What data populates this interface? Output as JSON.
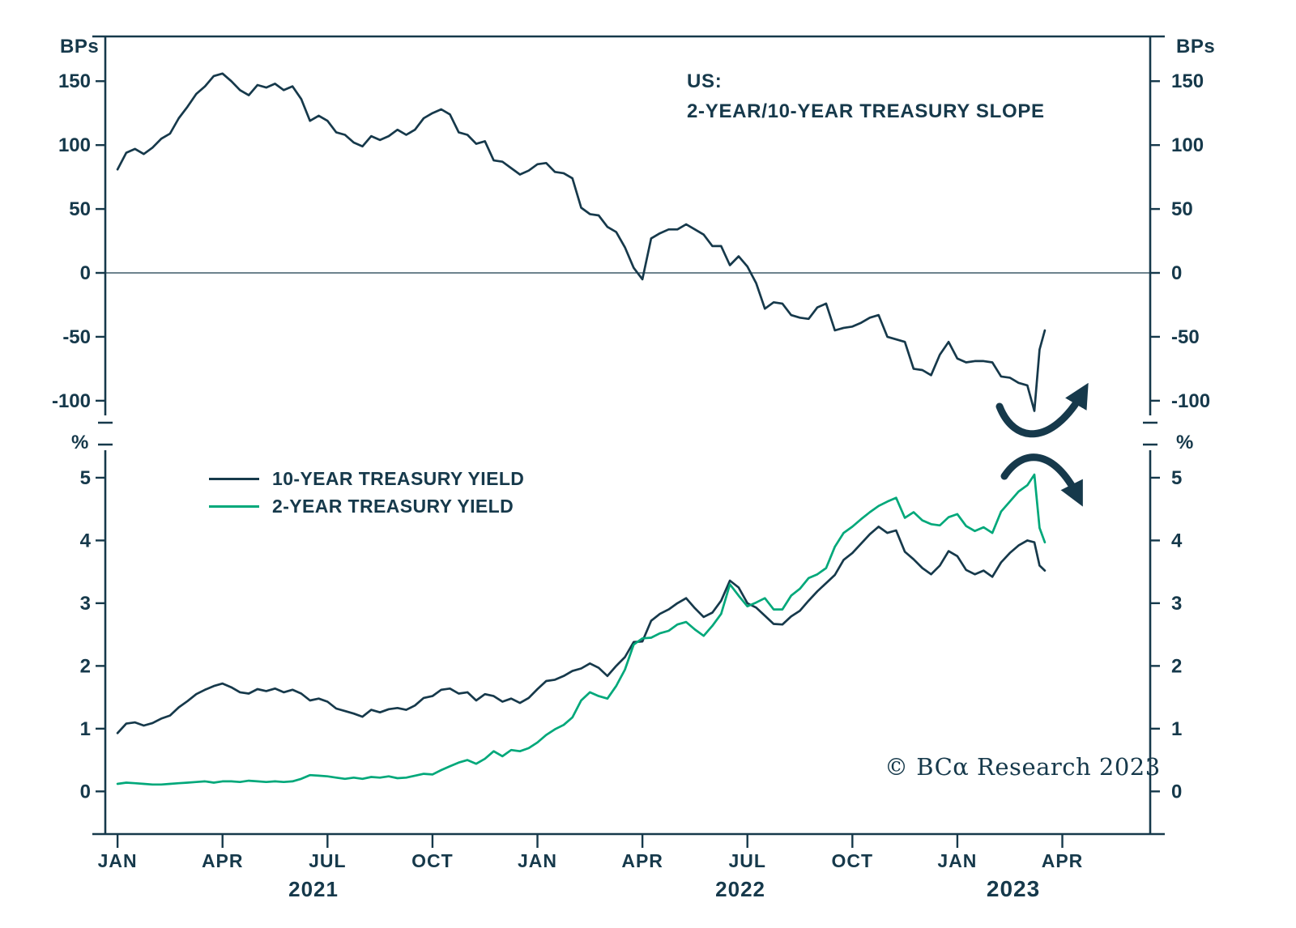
{
  "title": {
    "line1": "US:",
    "line2": "2-YEAR/10-YEAR TREASURY SLOPE"
  },
  "axis_units": {
    "top_left": "BPs",
    "top_right": "BPs",
    "bottom_left": "%",
    "bottom_right": "%"
  },
  "legend": [
    {
      "label": "10-YEAR TREASURY YIELD",
      "color": "#16394B"
    },
    {
      "label": "2-YEAR TREASURY YIELD",
      "color": "#00A87A"
    }
  ],
  "copyright": "© BCα Research 2023",
  "colors": {
    "navy": "#16394B",
    "green": "#00A87A",
    "background": "#FFFFFF"
  },
  "x_axis": {
    "month_labels": [
      "JAN",
      "APR",
      "JUL",
      "OCT",
      "JAN",
      "APR",
      "JUL",
      "OCT",
      "JAN",
      "APR"
    ],
    "month_positions": [
      0,
      3,
      6,
      9,
      12,
      15,
      18,
      21,
      24,
      27
    ],
    "year_labels": [
      {
        "label": "2021",
        "pos": 5.6,
        "emphasis": false
      },
      {
        "label": "2022",
        "pos": 17.8,
        "emphasis": false
      },
      {
        "label": "2023",
        "pos": 25.6,
        "emphasis": true
      }
    ]
  },
  "chart_data": [
    {
      "type": "line",
      "panel": "top",
      "title": "US: 2-YEAR/10-YEAR TREASURY SLOPE",
      "ylabel": "BPs",
      "ylim": [
        -121,
        185
      ],
      "yticks": [
        150,
        100,
        50,
        0,
        -50,
        -100
      ],
      "zero_line": true,
      "x_unit": "months since Jan 2021",
      "x": [
        0,
        0.25,
        0.5,
        0.75,
        1,
        1.25,
        1.5,
        1.75,
        2,
        2.25,
        2.5,
        2.75,
        3,
        3.25,
        3.5,
        3.75,
        4,
        4.25,
        4.5,
        4.75,
        5,
        5.25,
        5.5,
        5.75,
        6,
        6.25,
        6.5,
        6.75,
        7,
        7.25,
        7.5,
        7.75,
        8,
        8.25,
        8.5,
        8.75,
        9,
        9.25,
        9.5,
        9.75,
        10,
        10.25,
        10.5,
        10.75,
        11,
        11.25,
        11.5,
        11.75,
        12,
        12.25,
        12.5,
        12.75,
        13,
        13.25,
        13.5,
        13.75,
        14,
        14.25,
        14.5,
        14.75,
        15,
        15.25,
        15.5,
        15.75,
        16,
        16.25,
        16.5,
        16.75,
        17,
        17.25,
        17.5,
        17.75,
        18,
        18.25,
        18.5,
        18.75,
        19,
        19.25,
        19.5,
        19.75,
        20,
        20.25,
        20.5,
        20.75,
        21,
        21.25,
        21.5,
        21.75,
        22,
        22.25,
        22.5,
        22.75,
        23,
        23.25,
        23.5,
        23.75,
        24,
        24.25,
        24.5,
        24.75,
        25,
        25.25,
        25.5,
        25.75,
        26,
        26.2,
        26.35,
        26.5
      ],
      "series": [
        {
          "name": "2-year/10-year Treasury slope (bps)",
          "color": "#16394B",
          "values": [
            81,
            94,
            97,
            93,
            98,
            105,
            109,
            121,
            130,
            140,
            146,
            154,
            156,
            150,
            143,
            139,
            147,
            145,
            148,
            143,
            146,
            136,
            119,
            123,
            119,
            110,
            108,
            102,
            99,
            107,
            104,
            107,
            112,
            108,
            112,
            121,
            125,
            128,
            124,
            110,
            108,
            101,
            103,
            88,
            87,
            82,
            77,
            80,
            85,
            86,
            79,
            78,
            74,
            51,
            46,
            45,
            36,
            32,
            20,
            4,
            -5,
            27,
            31,
            34,
            34,
            38,
            34,
            30,
            21,
            21,
            6,
            13,
            5,
            -8,
            -28,
            -23,
            -24,
            -33,
            -35,
            -36,
            -27,
            -24,
            -45,
            -43,
            -42,
            -39,
            -35,
            -33,
            -50,
            -52,
            -54,
            -75,
            -76,
            -80,
            -64,
            -54,
            -67,
            -70,
            -69,
            -69,
            -70,
            -81,
            -82,
            -86,
            -88,
            -108,
            -60,
            -45
          ]
        }
      ],
      "annotation": "curved arrow pointing up-right at the sharp re-steepening spike, March 2023"
    },
    {
      "type": "line",
      "panel": "bottom",
      "ylabel": "%",
      "ylim": [
        -0.68,
        5.58
      ],
      "yticks": [
        5,
        4,
        3,
        2,
        1,
        0
      ],
      "zero_line": false,
      "x_unit": "months since Jan 2021",
      "x": [
        0,
        0.25,
        0.5,
        0.75,
        1,
        1.25,
        1.5,
        1.75,
        2,
        2.25,
        2.5,
        2.75,
        3,
        3.25,
        3.5,
        3.75,
        4,
        4.25,
        4.5,
        4.75,
        5,
        5.25,
        5.5,
        5.75,
        6,
        6.25,
        6.5,
        6.75,
        7,
        7.25,
        7.5,
        7.75,
        8,
        8.25,
        8.5,
        8.75,
        9,
        9.25,
        9.5,
        9.75,
        10,
        10.25,
        10.5,
        10.75,
        11,
        11.25,
        11.5,
        11.75,
        12,
        12.25,
        12.5,
        12.75,
        13,
        13.25,
        13.5,
        13.75,
        14,
        14.25,
        14.5,
        14.75,
        15,
        15.25,
        15.5,
        15.75,
        16,
        16.25,
        16.5,
        16.75,
        17,
        17.25,
        17.5,
        17.75,
        18,
        18.25,
        18.5,
        18.75,
        19,
        19.25,
        19.5,
        19.75,
        20,
        20.25,
        20.5,
        20.75,
        21,
        21.25,
        21.5,
        21.75,
        22,
        22.25,
        22.5,
        22.75,
        23,
        23.25,
        23.5,
        23.75,
        24,
        24.25,
        24.5,
        24.75,
        25,
        25.25,
        25.5,
        25.75,
        26,
        26.2,
        26.35,
        26.5
      ],
      "series": [
        {
          "name": "10-YEAR TREASURY YIELD",
          "color": "#16394B",
          "values": [
            0.93,
            1.08,
            1.1,
            1.05,
            1.09,
            1.16,
            1.21,
            1.34,
            1.44,
            1.55,
            1.62,
            1.68,
            1.72,
            1.66,
            1.58,
            1.56,
            1.63,
            1.6,
            1.64,
            1.58,
            1.62,
            1.56,
            1.45,
            1.48,
            1.43,
            1.32,
            1.28,
            1.24,
            1.19,
            1.3,
            1.26,
            1.31,
            1.33,
            1.3,
            1.37,
            1.49,
            1.52,
            1.62,
            1.64,
            1.56,
            1.58,
            1.45,
            1.55,
            1.52,
            1.43,
            1.48,
            1.41,
            1.49,
            1.63,
            1.76,
            1.78,
            1.84,
            1.92,
            1.96,
            2.04,
            1.97,
            1.84,
            2.0,
            2.14,
            2.38,
            2.39,
            2.72,
            2.83,
            2.9,
            3.0,
            3.08,
            2.92,
            2.78,
            2.85,
            3.04,
            3.36,
            3.25,
            3.0,
            2.93,
            2.8,
            2.67,
            2.66,
            2.79,
            2.88,
            3.04,
            3.19,
            3.32,
            3.45,
            3.69,
            3.8,
            3.95,
            4.1,
            4.22,
            4.12,
            4.16,
            3.82,
            3.7,
            3.56,
            3.46,
            3.6,
            3.83,
            3.75,
            3.53,
            3.46,
            3.52,
            3.42,
            3.65,
            3.8,
            3.92,
            4.0,
            3.97,
            3.6,
            3.52
          ]
        },
        {
          "name": "2-YEAR TREASURY YIELD",
          "color": "#00A87A",
          "values": [
            0.12,
            0.14,
            0.13,
            0.12,
            0.11,
            0.11,
            0.12,
            0.13,
            0.14,
            0.15,
            0.16,
            0.14,
            0.16,
            0.16,
            0.15,
            0.17,
            0.16,
            0.15,
            0.16,
            0.15,
            0.16,
            0.2,
            0.26,
            0.25,
            0.24,
            0.22,
            0.2,
            0.22,
            0.2,
            0.23,
            0.22,
            0.24,
            0.21,
            0.22,
            0.25,
            0.28,
            0.27,
            0.34,
            0.4,
            0.46,
            0.5,
            0.44,
            0.52,
            0.64,
            0.56,
            0.66,
            0.64,
            0.69,
            0.78,
            0.9,
            0.99,
            1.06,
            1.18,
            1.45,
            1.58,
            1.52,
            1.48,
            1.68,
            1.94,
            2.34,
            2.44,
            2.45,
            2.52,
            2.56,
            2.66,
            2.7,
            2.58,
            2.48,
            2.64,
            2.83,
            3.3,
            3.12,
            2.95,
            3.01,
            3.08,
            2.9,
            2.9,
            3.12,
            3.23,
            3.4,
            3.46,
            3.56,
            3.9,
            4.12,
            4.22,
            4.34,
            4.45,
            4.55,
            4.62,
            4.68,
            4.36,
            4.45,
            4.32,
            4.26,
            4.24,
            4.37,
            4.42,
            4.23,
            4.15,
            4.21,
            4.12,
            4.46,
            4.62,
            4.78,
            4.88,
            5.05,
            4.2,
            3.97
          ]
        }
      ],
      "annotation": "curved arrow pointing down-right at the sharp yield drop, March 2023"
    }
  ]
}
